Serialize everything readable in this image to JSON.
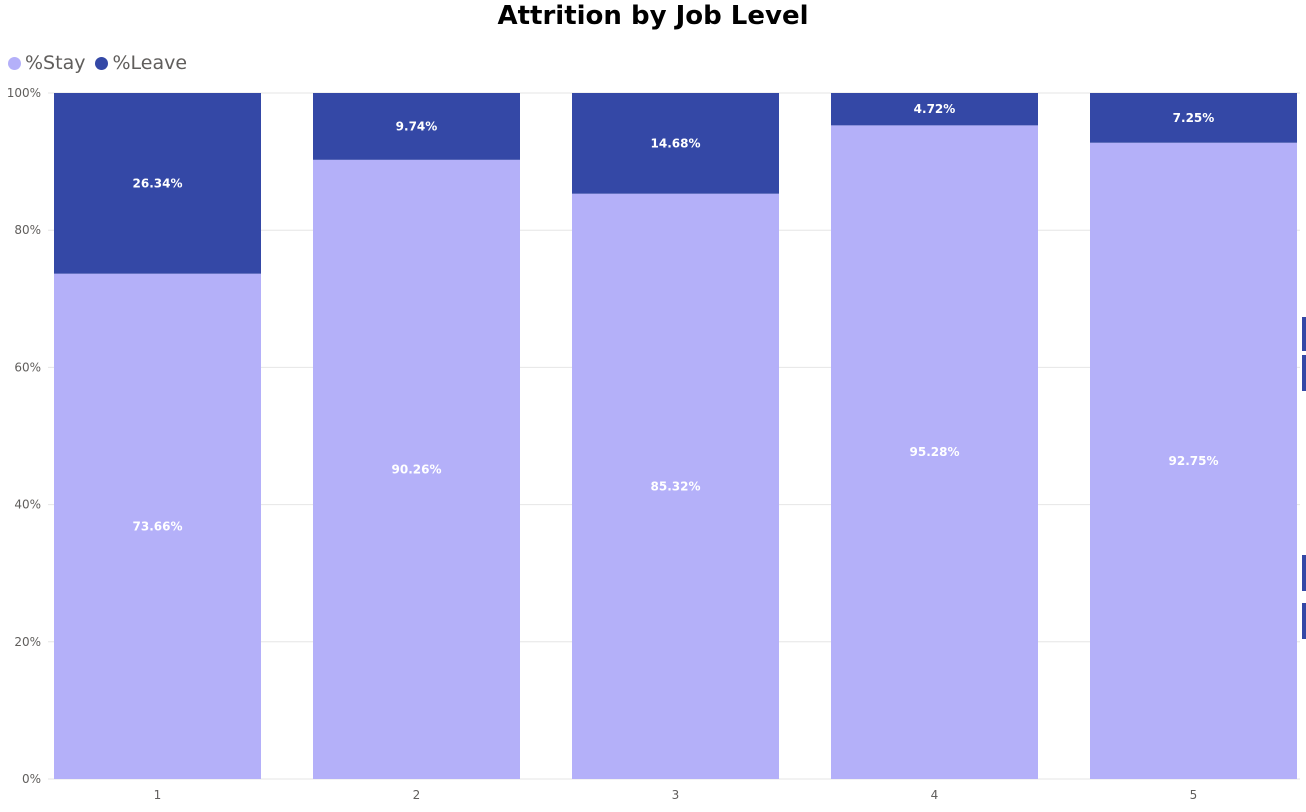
{
  "chart_data": {
    "type": "bar",
    "stacked": true,
    "title": "Attrition by Job Level",
    "xlabel": "",
    "ylabel": "",
    "categories": [
      "1",
      "2",
      "3",
      "4",
      "5"
    ],
    "series": [
      {
        "name": "%Stay",
        "color": "#b4b0f9",
        "values": [
          73.66,
          90.26,
          85.32,
          95.28,
          92.75
        ],
        "labels": [
          "73.66%",
          "90.26%",
          "85.32%",
          "95.28%",
          "92.75%"
        ]
      },
      {
        "name": "%Leave",
        "color": "#3448a6",
        "values": [
          26.34,
          9.74,
          14.68,
          4.72,
          7.25
        ],
        "labels": [
          "26.34%",
          "9.74%",
          "14.68%",
          "4.72%",
          "7.25%"
        ]
      }
    ],
    "ylim": [
      0,
      100
    ],
    "yticks": [
      0,
      20,
      40,
      60,
      80,
      100
    ],
    "ytick_labels": [
      "0%",
      "20%",
      "40%",
      "60%",
      "80%",
      "100%"
    ],
    "grid": true,
    "legend_position": "top-left"
  }
}
